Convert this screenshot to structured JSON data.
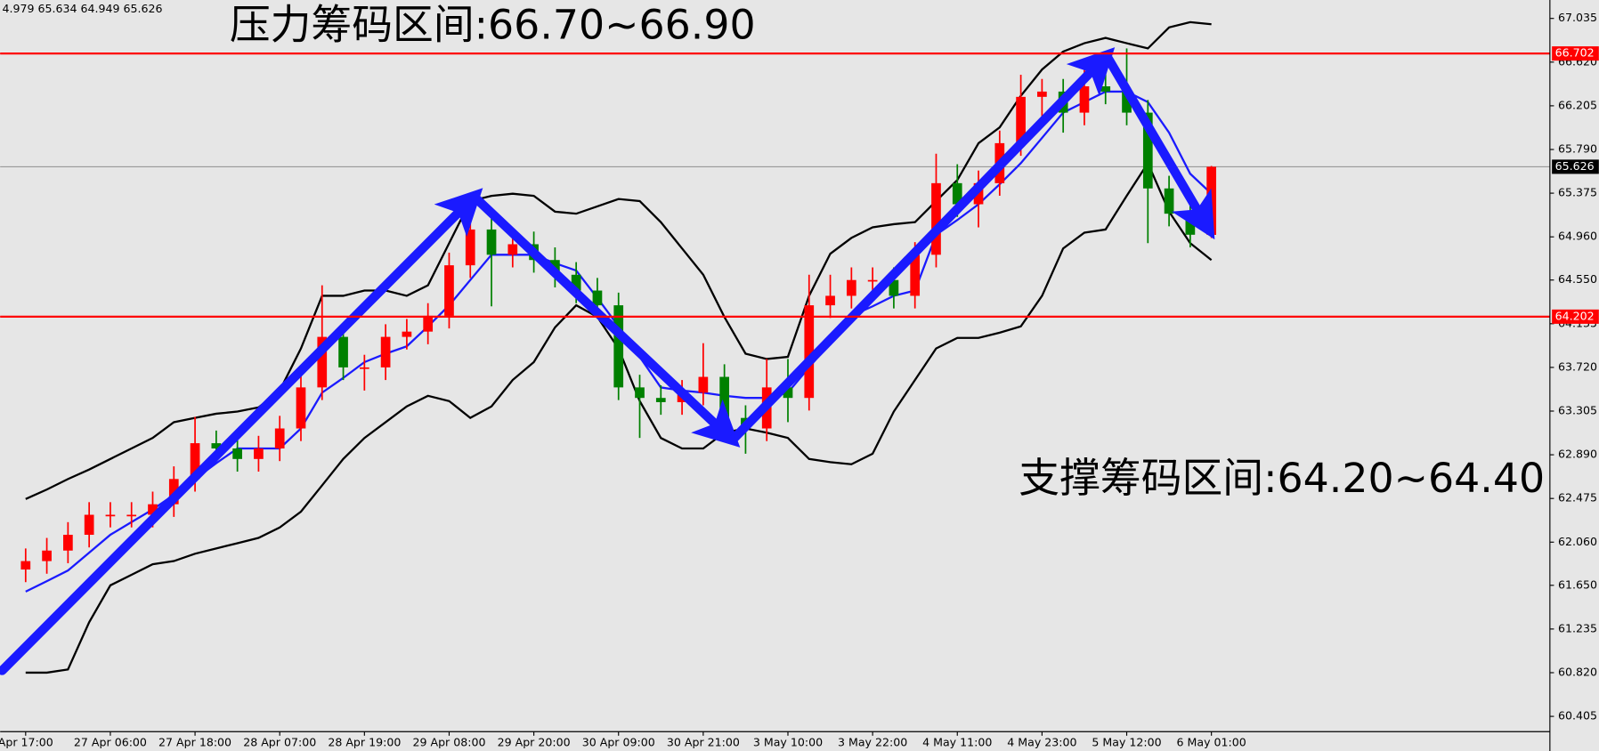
{
  "chart_data": {
    "type": "candlestick",
    "info": "4.979 65.634 64.949 65.626",
    "annotations": [
      "压力筹码区间:66.70~66.90",
      "支撑筹码区间:64.20~64.40"
    ],
    "categories": [
      "Apr 17:00",
      null,
      null,
      null,
      "27 Apr 06:00",
      null,
      null,
      null,
      "27 Apr 18:00",
      null,
      null,
      null,
      "28 Apr 07:00",
      null,
      null,
      null,
      "28 Apr 19:00",
      null,
      null,
      null,
      "29 Apr 08:00",
      null,
      null,
      null,
      "29 Apr 20:00",
      null,
      null,
      null,
      "30 Apr 09:00",
      null,
      null,
      null,
      "30 Apr 21:00",
      null,
      null,
      null,
      "3 May 10:00",
      null,
      null,
      null,
      "3 May 22:00",
      null,
      null,
      null,
      "4 May 11:00",
      null,
      null,
      null,
      "4 May 23:00",
      null,
      null,
      null,
      "5 May 12:00",
      null,
      null,
      null,
      "6 May 01:00"
    ],
    "open": [
      61.8,
      61.88,
      61.98,
      62.13,
      62.32,
      62.32,
      62.32,
      62.42,
      62.66,
      63.0,
      62.95,
      62.85,
      62.95,
      63.14,
      63.53,
      64.01,
      63.72,
      63.72,
      64.01,
      64.06,
      64.21,
      64.69,
      65.03,
      64.79,
      64.89,
      64.74,
      64.6,
      64.45,
      64.31,
      63.53,
      63.43,
      63.39,
      63.48,
      63.63,
      63.24,
      63.14,
      63.53,
      63.43,
      64.31,
      64.4,
      64.55,
      64.55,
      64.4,
      64.79,
      65.47,
      65.27,
      65.47,
      65.85,
      66.29,
      66.34,
      66.14,
      66.39,
      66.34,
      66.14,
      65.42,
      65.18,
      64.979
    ],
    "high": [
      62.0,
      62.1,
      62.25,
      62.44,
      62.44,
      62.44,
      62.54,
      62.78,
      63.25,
      63.12,
      63.07,
      63.07,
      63.26,
      63.65,
      64.5,
      64.13,
      63.84,
      64.13,
      64.18,
      64.33,
      64.81,
      65.35,
      65.15,
      65.01,
      65.01,
      64.86,
      64.72,
      64.57,
      64.43,
      63.65,
      63.55,
      63.6,
      63.95,
      63.75,
      63.36,
      63.8,
      63.8,
      64.6,
      64.6,
      64.67,
      64.67,
      64.67,
      64.91,
      65.75,
      65.65,
      65.59,
      65.97,
      66.5,
      66.46,
      66.46,
      66.55,
      66.7,
      66.75,
      66.26,
      65.54,
      65.3,
      65.634
    ],
    "low": [
      61.68,
      61.76,
      61.86,
      62.01,
      62.2,
      62.2,
      62.2,
      62.3,
      62.54,
      62.83,
      62.73,
      62.73,
      62.83,
      63.02,
      63.41,
      63.6,
      63.5,
      63.6,
      63.89,
      63.94,
      64.09,
      64.57,
      64.3,
      64.67,
      64.62,
      64.48,
      64.33,
      64.19,
      63.41,
      63.05,
      63.27,
      63.27,
      63.36,
      63.12,
      62.9,
      63.02,
      63.2,
      63.31,
      64.19,
      64.28,
      64.43,
      64.28,
      64.28,
      64.67,
      65.15,
      65.05,
      65.35,
      65.73,
      66.05,
      65.95,
      66.02,
      66.22,
      66.02,
      64.9,
      65.06,
      64.86,
      64.949
    ],
    "close": [
      61.88,
      61.98,
      62.13,
      62.32,
      62.32,
      62.32,
      62.42,
      62.66,
      63.0,
      62.95,
      62.85,
      62.95,
      63.14,
      63.53,
      64.01,
      63.72,
      63.72,
      64.01,
      64.06,
      64.21,
      64.69,
      65.03,
      64.79,
      64.89,
      64.74,
      64.6,
      64.45,
      64.31,
      63.53,
      63.43,
      63.39,
      63.48,
      63.63,
      63.24,
      63.14,
      63.53,
      63.43,
      64.31,
      64.4,
      64.55,
      64.55,
      64.4,
      64.79,
      65.47,
      65.27,
      65.47,
      65.85,
      66.29,
      66.34,
      66.14,
      66.39,
      66.34,
      66.14,
      65.42,
      65.18,
      64.98,
      65.626
    ],
    "up_color": "#ff0000",
    "down_color": "#008000",
    "series": [
      {
        "color": "#1a1aff",
        "values": [
          61.59,
          61.69,
          61.79,
          61.96,
          62.13,
          62.25,
          62.37,
          62.51,
          62.66,
          62.81,
          62.95,
          62.95,
          62.95,
          63.14,
          63.48,
          63.62,
          63.77,
          63.85,
          63.92,
          64.11,
          64.31,
          64.55,
          64.79,
          64.79,
          64.79,
          64.71,
          64.64,
          64.38,
          64.11,
          63.82,
          63.53,
          63.5,
          63.48,
          63.45,
          63.43,
          63.43,
          63.48,
          63.72,
          63.96,
          64.21,
          64.3,
          64.4,
          64.45,
          64.98,
          65.12,
          65.27,
          65.46,
          65.66,
          65.9,
          66.14,
          66.24,
          66.34,
          66.34,
          66.24,
          65.95,
          65.56,
          65.37
        ]
      },
      {
        "color": "#000000",
        "values": [
          62.47,
          62.56,
          62.66,
          62.75,
          62.85,
          62.95,
          63.05,
          63.2,
          63.24,
          63.28,
          63.3,
          63.34,
          63.5,
          63.9,
          64.4,
          64.4,
          64.45,
          64.45,
          64.4,
          64.5,
          64.9,
          65.3,
          65.35,
          65.37,
          65.35,
          65.2,
          65.18,
          65.25,
          65.32,
          65.3,
          65.1,
          64.85,
          64.6,
          64.2,
          63.85,
          63.8,
          63.82,
          64.4,
          64.8,
          64.95,
          65.05,
          65.08,
          65.1,
          65.3,
          65.5,
          65.85,
          66.0,
          66.3,
          66.55,
          66.72,
          66.8,
          66.85,
          66.8,
          66.75,
          66.95,
          67.0,
          66.98
        ]
      },
      {
        "color": "#000000",
        "values": [
          60.82,
          60.82,
          60.85,
          61.3,
          61.65,
          61.75,
          61.85,
          61.88,
          61.95,
          62.0,
          62.05,
          62.1,
          62.2,
          62.35,
          62.6,
          62.85,
          63.05,
          63.2,
          63.35,
          63.45,
          63.4,
          63.24,
          63.35,
          63.6,
          63.77,
          64.1,
          64.31,
          64.2,
          63.9,
          63.4,
          63.05,
          62.95,
          62.95,
          63.1,
          63.14,
          63.1,
          63.05,
          62.85,
          62.82,
          62.8,
          62.9,
          63.3,
          63.6,
          63.9,
          64.0,
          64.0,
          64.05,
          64.11,
          64.4,
          64.85,
          65.0,
          65.03,
          65.35,
          65.66,
          65.2,
          64.9,
          64.74
        ]
      }
    ],
    "hlines": [
      66.702,
      64.202
    ],
    "hline_color": "#ff0000",
    "current_price": 65.626,
    "ylim": [
      60.26,
      67.21
    ],
    "yticks": [
      67.035,
      {
        "value": 66.62,
        "label": "66.620"
      },
      66.205,
      {
        "value": 65.79,
        "label": "65.790"
      },
      65.375,
      {
        "value": 64.96,
        "label": "64.960"
      },
      {
        "value": 64.55,
        "label": "64.550"
      },
      64.135,
      {
        "value": 63.72,
        "label": "63.720"
      },
      63.305,
      {
        "value": 62.89,
        "label": "62.890"
      },
      62.475,
      {
        "value": 62.06,
        "label": "62.060"
      },
      {
        "value": 61.65,
        "label": "61.650"
      },
      61.235,
      {
        "value": 60.82,
        "label": "60.820"
      },
      60.405
    ]
  }
}
